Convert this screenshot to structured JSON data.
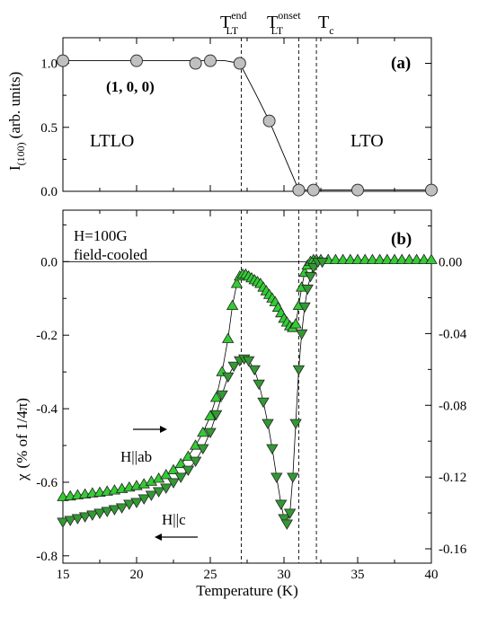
{
  "chart_data": [
    {
      "panel": "(a)",
      "type": "line",
      "xlabel": "",
      "ylabel": {
        "main": "I",
        "sub": "(100)",
        "rest": "(arb. units)"
      },
      "xlim": [
        15,
        40
      ],
      "ylim": [
        0,
        1.2
      ],
      "yticks": [
        "0.0",
        "0.5",
        "1.0"
      ],
      "grid": false,
      "series": [
        {
          "name": "(1, 0, 0)",
          "marker": "circle",
          "color": "#c0c0c0",
          "x": [
            15,
            20,
            24,
            25,
            26,
            27,
            28,
            29,
            30,
            31,
            33,
            35,
            40
          ],
          "y": [
            1.02,
            1.02,
            1.02,
            1.02,
            1.02,
            1.0,
            0.78,
            0.55,
            0.28,
            0.01,
            0.01,
            0.01,
            0.01
          ],
          "points_x": [
            15,
            20,
            24,
            25,
            27,
            29,
            31,
            32,
            35,
            40
          ],
          "points_y": [
            1.02,
            1.02,
            1.0,
            1.02,
            1.0,
            0.55,
            0.01,
            0.01,
            0.01,
            0.01
          ]
        }
      ],
      "annotations": {
        "left_phase": "LTLO",
        "right_phase": "LTO",
        "reflection": "(1, 0, 0)"
      }
    },
    {
      "panel": "(b)",
      "type": "scatter",
      "xlabel": "Temperature (K)",
      "ylabel": {
        "main": "χ",
        "rest": "(% of 1/4π)"
      },
      "xlim": [
        15,
        40
      ],
      "ylim": [
        -0.82,
        0.14
      ],
      "yticks": [
        "-0.8",
        "-0.6",
        "-0.4",
        "-0.2",
        "0.0"
      ],
      "xticks": [
        "15",
        "20",
        "25",
        "30",
        "35",
        "40"
      ],
      "right_axis": {
        "ylim": [
          -0.168,
          0.0288
        ],
        "yticks": [
          "-0.16",
          "-0.12",
          "-0.08",
          "-0.04",
          "0.00"
        ]
      },
      "grid": false,
      "annotations": {
        "field": "H=100G",
        "mode": "field-cooled",
        "ab_label": "H||ab",
        "c_label": "H||c"
      },
      "series": [
        {
          "name": "H||ab",
          "marker": "triangle-up",
          "color": "#33cc33",
          "axis": "left",
          "x": [
            15,
            15.5,
            16,
            16.5,
            17,
            17.5,
            18,
            18.5,
            19,
            19.5,
            20,
            20.5,
            21,
            21.5,
            22,
            22.5,
            23,
            23.5,
            24,
            24.5,
            25,
            25.4,
            25.8,
            26.2,
            26.5,
            26.8,
            27,
            27.2,
            27.4,
            27.6,
            27.8,
            28,
            28.2,
            28.4,
            28.6,
            28.8,
            29,
            29.2,
            29.4,
            29.6,
            29.8,
            30,
            30.2,
            30.4,
            30.6,
            30.8,
            31,
            31.2,
            31.4,
            31.6,
            31.8,
            32,
            32.2,
            32.5,
            33,
            33.5,
            34,
            34.5,
            35,
            35.5,
            36,
            36.5,
            37,
            37.5,
            38,
            38.5,
            39,
            39.5,
            40
          ],
          "y": [
            -0.64,
            -0.638,
            -0.635,
            -0.633,
            -0.63,
            -0.628,
            -0.625,
            -0.622,
            -0.618,
            -0.614,
            -0.61,
            -0.605,
            -0.598,
            -0.59,
            -0.58,
            -0.567,
            -0.55,
            -0.53,
            -0.5,
            -0.465,
            -0.42,
            -0.37,
            -0.3,
            -0.21,
            -0.12,
            -0.06,
            -0.04,
            -0.035,
            -0.035,
            -0.04,
            -0.045,
            -0.05,
            -0.055,
            -0.06,
            -0.07,
            -0.08,
            -0.09,
            -0.1,
            -0.11,
            -0.125,
            -0.14,
            -0.155,
            -0.165,
            -0.175,
            -0.18,
            -0.17,
            -0.12,
            -0.07,
            -0.03,
            -0.01,
            0.0,
            0.005,
            0.005,
            0.005,
            0.005,
            0.005,
            0.005,
            0.005,
            0.005,
            0.005,
            0.005,
            0.005,
            0.005,
            0.005,
            0.005,
            0.005,
            0.005,
            0.005,
            0.005
          ]
        },
        {
          "name": "H||c",
          "marker": "triangle-down",
          "color": "#339933",
          "axis": "right",
          "x": [
            15,
            15.5,
            16,
            16.5,
            17,
            17.5,
            18,
            18.5,
            19,
            19.5,
            20,
            20.5,
            21,
            21.5,
            22,
            22.5,
            23,
            23.5,
            24,
            24.5,
            25,
            25.4,
            25.8,
            26.2,
            26.6,
            27,
            27.3,
            27.6,
            28,
            28.3,
            28.6,
            28.9,
            29.2,
            29.5,
            29.8,
            30,
            30.2,
            30.4,
            30.6,
            30.8,
            31,
            31.2,
            31.4,
            31.6,
            31.8,
            32,
            32.3,
            32.6
          ],
          "y": [
            -0.145,
            -0.144,
            -0.143,
            -0.142,
            -0.141,
            -0.14,
            -0.139,
            -0.138,
            -0.137,
            -0.135,
            -0.134,
            -0.132,
            -0.13,
            -0.128,
            -0.126,
            -0.123,
            -0.12,
            -0.116,
            -0.111,
            -0.104,
            -0.095,
            -0.085,
            -0.074,
            -0.064,
            -0.058,
            -0.055,
            -0.054,
            -0.055,
            -0.06,
            -0.068,
            -0.078,
            -0.09,
            -0.104,
            -0.12,
            -0.135,
            -0.143,
            -0.146,
            -0.14,
            -0.12,
            -0.09,
            -0.06,
            -0.04,
            -0.025,
            -0.015,
            -0.008,
            -0.003,
            0.0,
            0.0
          ]
        }
      ]
    }
  ],
  "top_labels": {
    "t_end": {
      "main": "T",
      "sub": "LT",
      "sup": "end"
    },
    "t_onset": {
      "main": "T",
      "sub": "LT",
      "sup": "onset"
    },
    "t_c": {
      "main": "T",
      "sub": "c"
    }
  },
  "vlines_x": [
    27.1,
    31.0,
    32.2
  ],
  "colors": {
    "circle_fill": "#c0c0c0",
    "up_fill": "#33cc33",
    "down_fill": "#339933"
  }
}
